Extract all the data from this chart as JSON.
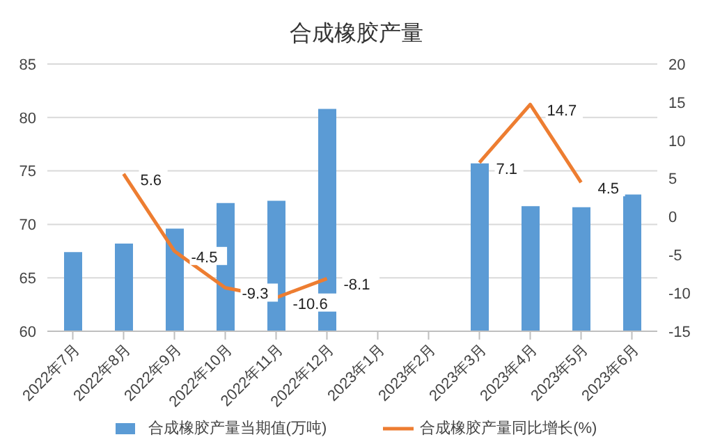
{
  "chart_data": {
    "type": "bar",
    "title": "合成橡胶产量",
    "categories": [
      "2022年7月",
      "2022年8月",
      "2022年9月",
      "2022年10月",
      "2022年11月",
      "2022年12月",
      "2023年1月",
      "2023年2月",
      "2023年3月",
      "2023年4月",
      "2023年5月",
      "2023年6月"
    ],
    "series": [
      {
        "name": "合成橡胶产量当期值(万吨)",
        "color": "#5b9bd5",
        "values": [
          67.4,
          68.2,
          69.6,
          72.0,
          72.2,
          80.8,
          null,
          null,
          75.7,
          71.7,
          71.6,
          72.8
        ]
      },
      {
        "name": "合成橡胶产量同比增长(%)",
        "type": "line",
        "axis": "y2",
        "color": "#ed7d31",
        "values": [
          null,
          5.6,
          -4.5,
          -9.3,
          -10.6,
          -8.1,
          null,
          null,
          7.1,
          14.7,
          4.5,
          null
        ],
        "value_labels": [
          null,
          "5.6",
          "-4.5",
          "-9.3",
          "-10.6",
          "-8.1",
          null,
          null,
          "7.1",
          "14.7",
          "4.5",
          null
        ]
      }
    ],
    "ylim": [
      60,
      85
    ],
    "yticks": [
      60,
      65,
      70,
      75,
      80,
      85
    ],
    "y2lim": [
      -15,
      20
    ],
    "y2ticks": [
      -15,
      -10,
      -5,
      0,
      5,
      10,
      15,
      20
    ],
    "grid": "y",
    "legend": "bottom",
    "marker": "none",
    "line_style": "solid"
  }
}
